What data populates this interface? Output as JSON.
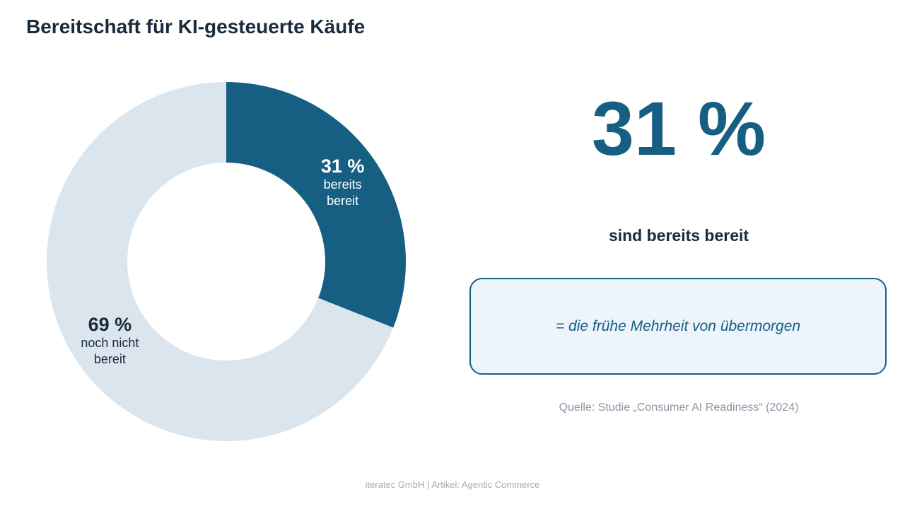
{
  "title": "Bereitschaft für KI-gesteuerte Käufe",
  "chart_data": {
    "type": "pie",
    "variant": "donut",
    "slices": [
      {
        "value": 31,
        "pct_label": "31 %",
        "label_lines": [
          "bereits",
          "bereit"
        ],
        "color": "#165f82",
        "label_color": "#ffffff"
      },
      {
        "value": 69,
        "pct_label": "69 %",
        "label_lines": [
          "noch nicht",
          "bereit"
        ],
        "color": "#dbe5ee",
        "label_color": "#1b2a3d"
      }
    ],
    "start": "top",
    "direction": "clockwise"
  },
  "highlight": {
    "value": "31 %",
    "subtitle": "sind bereits bereit",
    "callout": "= die frühe Mehrheit von übermorgen",
    "source": "Quelle: Studie „Consumer AI Readiness“ (2024)"
  },
  "footer": "iteratec GmbH | Artikel: Agentic Commerce",
  "colors": {
    "accent": "#165f82",
    "text_dark": "#1b2a3d",
    "muted": "#8d96a3",
    "callout_bg": "#edf4fb"
  }
}
